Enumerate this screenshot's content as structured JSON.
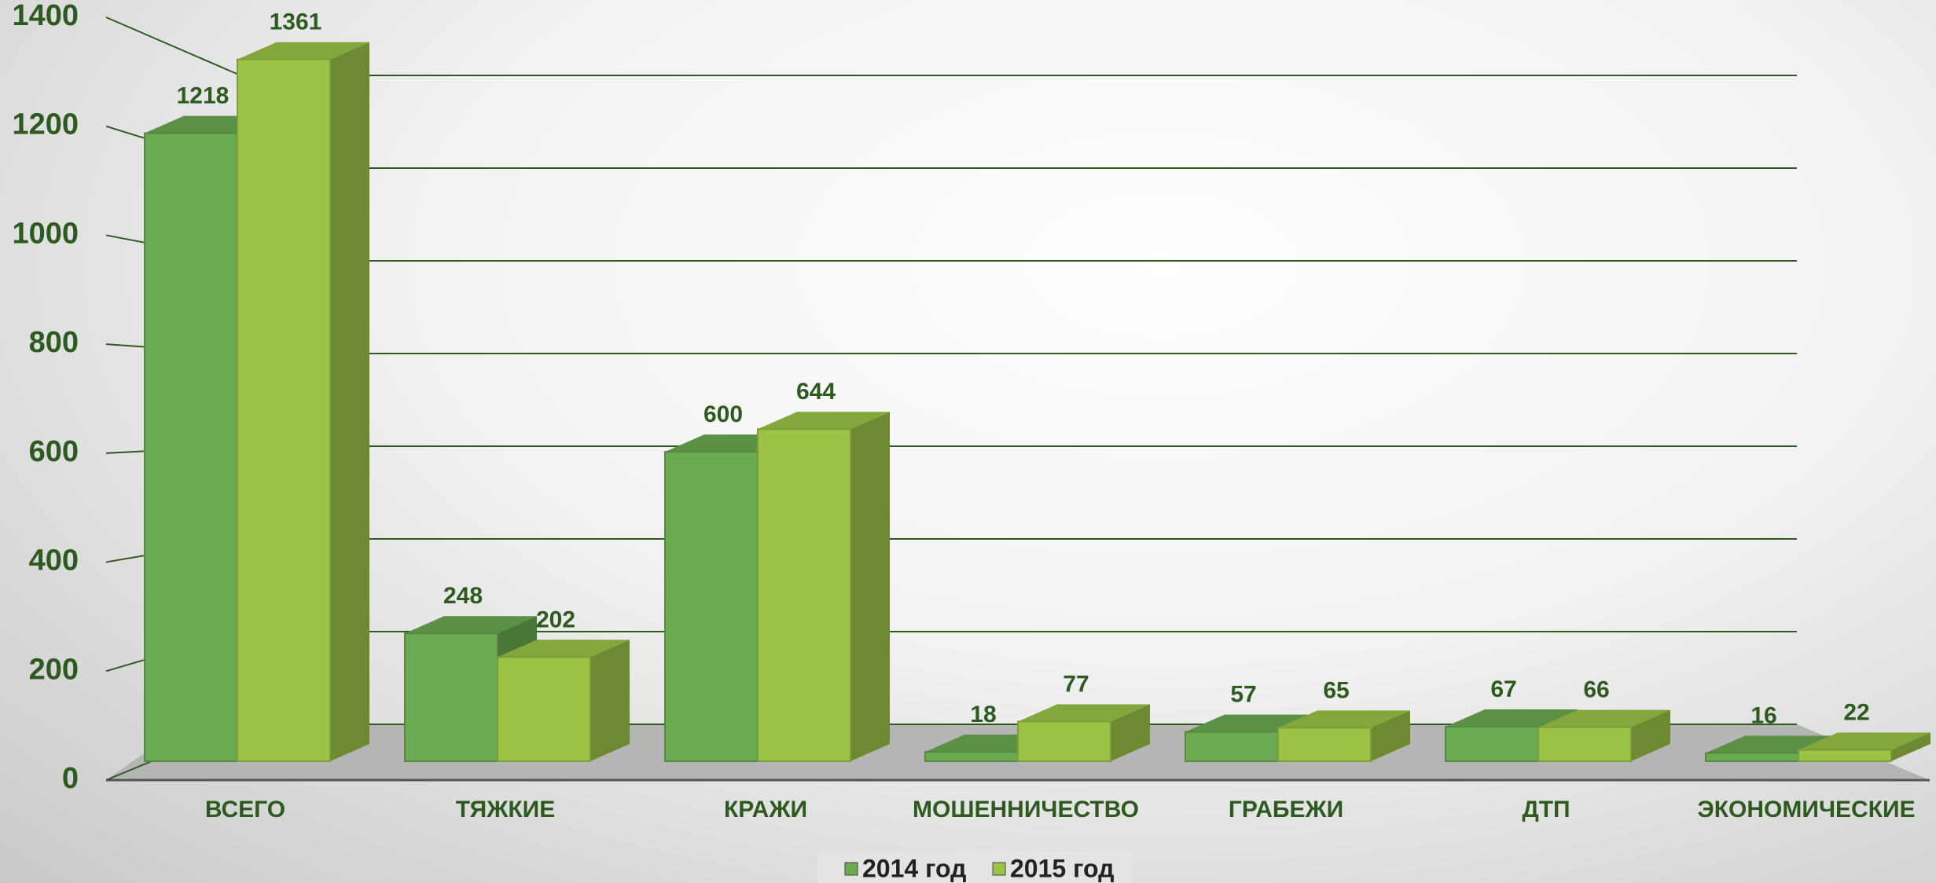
{
  "chart_data": {
    "type": "bar3d",
    "categories": [
      "ВСЕГО",
      "ТЯЖКИЕ",
      "КРАЖИ",
      "МОШЕННИЧЕСТВО",
      "ГРАБЕЖИ",
      "ДТП",
      "ЭКОНОМИЧЕСКИЕ"
    ],
    "series": [
      {
        "name": "2014 год",
        "color": "#6aaa50",
        "values": [
          1218,
          248,
          600,
          18,
          57,
          67,
          16
        ]
      },
      {
        "name": "2015 год",
        "color": "#9bc447",
        "values": [
          1361,
          202,
          644,
          77,
          65,
          66,
          22
        ]
      }
    ],
    "ylim": [
      0,
      1400
    ],
    "yticks": [
      0,
      200,
      400,
      600,
      800,
      1000,
      1200,
      1400
    ],
    "grid": true,
    "legend": "bottom"
  }
}
